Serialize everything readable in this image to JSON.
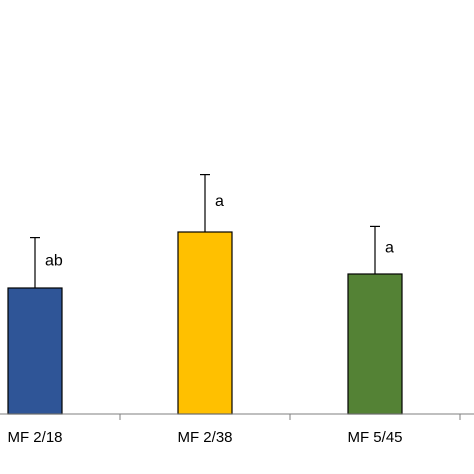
{
  "chart_data": {
    "type": "bar",
    "title": "",
    "xlabel": "",
    "ylabel": "",
    "categories": [
      "MF 2/18",
      "MF 2/38",
      "MF 5/45"
    ],
    "series": [
      {
        "values": [
          180,
          260,
          200
        ]
      }
    ],
    "error_bars": [
      72,
      82,
      68
    ],
    "significance_labels": [
      "ab",
      "a",
      "a"
    ],
    "bar_colors": [
      "#2f5597",
      "#ffc000",
      "#548235"
    ],
    "bar_edge_color": "#000000",
    "ylim": [
      0,
      400
    ],
    "grid": false,
    "legend": "none"
  }
}
